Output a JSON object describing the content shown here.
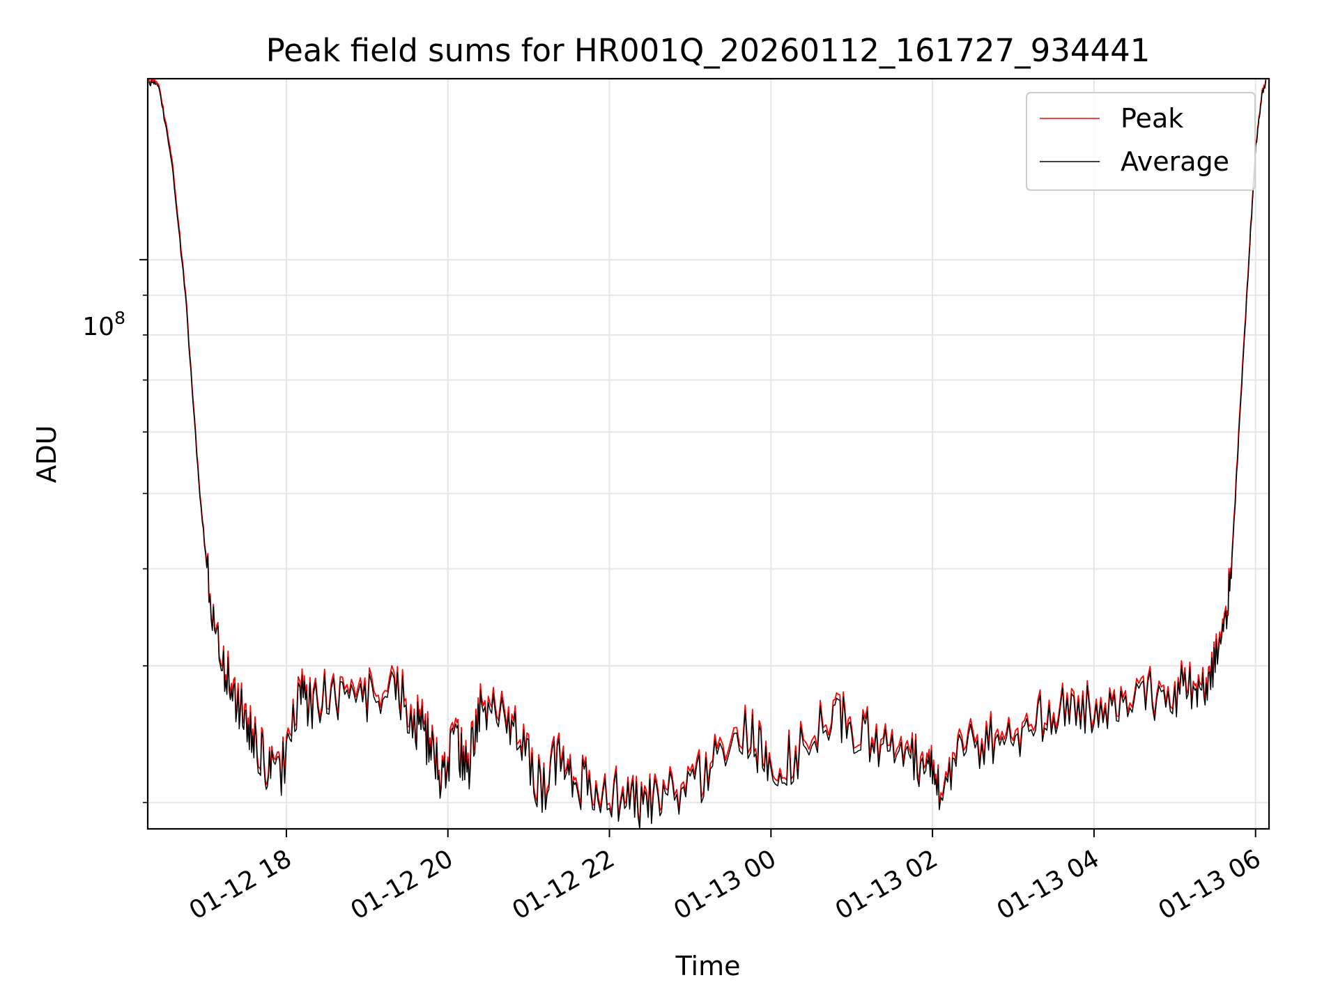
{
  "chart_data": {
    "type": "line",
    "title": "Peak field sums for HR001Q_20260112_161727_934441",
    "xlabel": "Time",
    "ylabel": "ADU",
    "yscale": "log",
    "ylim": [
      18500000,
      171000000
    ],
    "xlim": [
      "2026-01-12 16:17",
      "2026-01-13 06:10"
    ],
    "x_ticks": [
      "01-12 18",
      "01-12 20",
      "01-12 22",
      "01-13 00",
      "01-13 02",
      "01-13 04",
      "01-13 06"
    ],
    "x_tick_times": [
      "2026-01-12 18:00",
      "2026-01-12 20:00",
      "2026-01-12 22:00",
      "2026-01-13 00:00",
      "2026-01-13 02:00",
      "2026-01-13 04:00",
      "2026-01-13 06:00"
    ],
    "y_tick_label": {
      "base": "10",
      "exp": "8",
      "value": 100000000
    },
    "grid": true,
    "legend": "upper right",
    "colors": {
      "peak": "#ff0000",
      "average": "#000000"
    },
    "series": [
      {
        "name": "Peak",
        "color": "#ff0000",
        "x": [
          "2026-01-12 16:18",
          "2026-01-12 16:25",
          "2026-01-12 16:35",
          "2026-01-12 16:45",
          "2026-01-12 16:55",
          "2026-01-12 17:05",
          "2026-01-12 17:15",
          "2026-01-12 17:25",
          "2026-01-12 17:35",
          "2026-01-12 17:45",
          "2026-01-12 17:55",
          "2026-01-12 18:10",
          "2026-01-12 18:20",
          "2026-01-12 18:40",
          "2026-01-12 19:00",
          "2026-01-12 19:20",
          "2026-01-12 19:35",
          "2026-01-12 19:45",
          "2026-01-12 19:55",
          "2026-01-12 20:05",
          "2026-01-12 20:15",
          "2026-01-12 20:25",
          "2026-01-12 20:40",
          "2026-01-12 20:55",
          "2026-01-12 21:10",
          "2026-01-12 21:25",
          "2026-01-12 21:35",
          "2026-01-12 21:50",
          "2026-01-12 22:10",
          "2026-01-12 22:25",
          "2026-01-12 22:40",
          "2026-01-12 23:00",
          "2026-01-12 23:20",
          "2026-01-12 23:45",
          "2026-01-13 00:00",
          "2026-01-13 00:20",
          "2026-01-13 00:45",
          "2026-01-13 01:00",
          "2026-01-13 01:20",
          "2026-01-13 01:40",
          "2026-01-13 01:55",
          "2026-01-13 02:05",
          "2026-01-13 02:20",
          "2026-01-13 02:40",
          "2026-01-13 03:00",
          "2026-01-13 03:20",
          "2026-01-13 03:40",
          "2026-01-13 04:00",
          "2026-01-13 04:20",
          "2026-01-13 04:40",
          "2026-01-13 05:00",
          "2026-01-13 05:15",
          "2026-01-13 05:25",
          "2026-01-13 05:35",
          "2026-01-13 05:42",
          "2026-01-13 05:48",
          "2026-01-13 05:55",
          "2026-01-13 06:00",
          "2026-01-13 06:05",
          "2026-01-13 06:08"
        ],
        "y": [
          170000000,
          169000000,
          135000000,
          91000000,
          52000000,
          34000000,
          29500000,
          27000000,
          24500000,
          22500000,
          21800000,
          27500000,
          27200000,
          27800000,
          27500000,
          28500000,
          26000000,
          24500000,
          22000000,
          24000000,
          22500000,
          27500000,
          26500000,
          24000000,
          20800000,
          24000000,
          21500000,
          20800000,
          20500000,
          20200000,
          20800000,
          20800000,
          23500000,
          25000000,
          22000000,
          23500000,
          26000000,
          25500000,
          24000000,
          23800000,
          22500000,
          21500000,
          23500000,
          24500000,
          25000000,
          25800000,
          26500000,
          27000000,
          27500000,
          27800000,
          28000000,
          28500000,
          29500000,
          32000000,
          40000000,
          62000000,
          100000000,
          140000000,
          165000000,
          171000000
        ]
      },
      {
        "name": "Average",
        "color": "#000000",
        "x": [
          "2026-01-12 16:18",
          "2026-01-12 16:25",
          "2026-01-12 16:35",
          "2026-01-12 16:45",
          "2026-01-12 16:55",
          "2026-01-12 17:05",
          "2026-01-12 17:15",
          "2026-01-12 17:25",
          "2026-01-12 17:35",
          "2026-01-12 17:45",
          "2026-01-12 17:55",
          "2026-01-12 18:10",
          "2026-01-12 18:20",
          "2026-01-12 18:40",
          "2026-01-12 19:00",
          "2026-01-12 19:20",
          "2026-01-12 19:35",
          "2026-01-12 19:45",
          "2026-01-12 19:55",
          "2026-01-12 20:05",
          "2026-01-12 20:15",
          "2026-01-12 20:25",
          "2026-01-12 20:40",
          "2026-01-12 20:55",
          "2026-01-12 21:10",
          "2026-01-12 21:25",
          "2026-01-12 21:35",
          "2026-01-12 21:50",
          "2026-01-12 22:10",
          "2026-01-12 22:25",
          "2026-01-12 22:40",
          "2026-01-12 23:00",
          "2026-01-12 23:20",
          "2026-01-12 23:45",
          "2026-01-13 00:00",
          "2026-01-13 00:20",
          "2026-01-13 00:45",
          "2026-01-13 01:00",
          "2026-01-13 01:20",
          "2026-01-13 01:40",
          "2026-01-13 01:55",
          "2026-01-13 02:05",
          "2026-01-13 02:20",
          "2026-01-13 02:40",
          "2026-01-13 03:00",
          "2026-01-13 03:20",
          "2026-01-13 03:40",
          "2026-01-13 04:00",
          "2026-01-13 04:20",
          "2026-01-13 04:40",
          "2026-01-13 05:00",
          "2026-01-13 05:15",
          "2026-01-13 05:25",
          "2026-01-13 05:35",
          "2026-01-13 05:42",
          "2026-01-13 05:48",
          "2026-01-13 05:55",
          "2026-01-13 06:00",
          "2026-01-13 06:05",
          "2026-01-13 06:08"
        ],
        "y": [
          169000000,
          168000000,
          133000000,
          90000000,
          51500000,
          33800000,
          29000000,
          26500000,
          24000000,
          22200000,
          21500000,
          27000000,
          26800000,
          27400000,
          27000000,
          28000000,
          25500000,
          24000000,
          21700000,
          23600000,
          22100000,
          27000000,
          26000000,
          23600000,
          20500000,
          23600000,
          21200000,
          20500000,
          20200000,
          19900000,
          20500000,
          20500000,
          23100000,
          24600000,
          21700000,
          23100000,
          25600000,
          25100000,
          23600000,
          23400000,
          22100000,
          21200000,
          23100000,
          24100000,
          24600000,
          25400000,
          26100000,
          26600000,
          27100000,
          27400000,
          27600000,
          28100000,
          29000000,
          31500000,
          39500000,
          61000000,
          99000000,
          139000000,
          164000000,
          170000000
        ]
      }
    ]
  }
}
